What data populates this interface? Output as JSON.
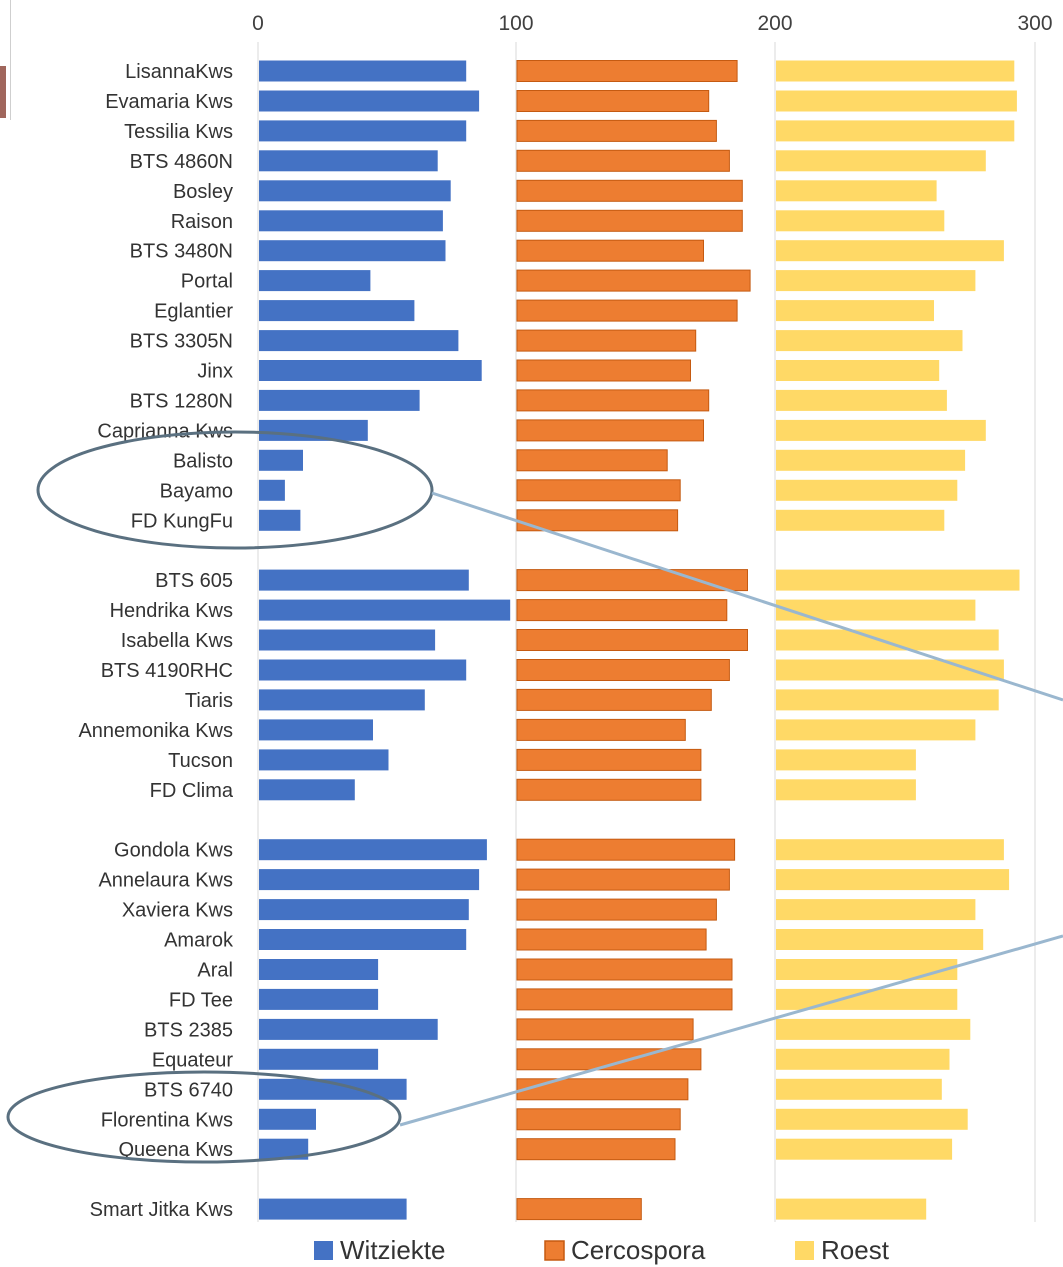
{
  "chart_data": {
    "type": "bar",
    "orientation": "horizontal",
    "layout": "stacked-panels",
    "x_ticks": [
      "0",
      "100",
      "200",
      "300"
    ],
    "xlim": [
      0,
      300
    ],
    "grid": true,
    "legend_position": "bottom",
    "categories": [
      "LisannaKws",
      "Evamaria Kws",
      "Tessilia Kws",
      "BTS 4860N",
      "Bosley",
      "Raison",
      "BTS 3480N",
      "Portal",
      "Eglantier",
      "BTS 3305N",
      "Jinx",
      "BTS 1280N",
      "Caprianna Kws",
      "Balisto",
      "Bayamo",
      "FD KungFu",
      "",
      "BTS 605",
      "Hendrika Kws",
      "Isabella Kws",
      "BTS 4190RHC",
      "Tiaris",
      "Annemonika Kws",
      "Tucson",
      "FD Clima",
      "",
      "Gondola Kws",
      "Annelaura Kws",
      "Xaviera Kws",
      "Amarok",
      "Aral",
      "FD Tee",
      "BTS 2385",
      "Equateur",
      "BTS  6740",
      "Florentina Kws",
      "Queena Kws",
      "",
      "Smart Jitka Kws"
    ],
    "series": [
      {
        "name": "Witziekte",
        "color": "#4472c4",
        "values": [
          80,
          85,
          80,
          69,
          74,
          71,
          72,
          43,
          60,
          77,
          86,
          62,
          42,
          17,
          10,
          16,
          null,
          81,
          97,
          68,
          80,
          64,
          44,
          50,
          37,
          null,
          88,
          85,
          81,
          80,
          46,
          46,
          69,
          46,
          57,
          22,
          19,
          null,
          57
        ]
      },
      {
        "name": "Cercospora",
        "color": "#ed7d31",
        "values": [
          85,
          74,
          77,
          82,
          87,
          87,
          72,
          90,
          85,
          69,
          67,
          74,
          72,
          58,
          63,
          62,
          null,
          89,
          81,
          89,
          82,
          75,
          65,
          71,
          71,
          null,
          84,
          82,
          77,
          73,
          83,
          83,
          68,
          71,
          66,
          63,
          61,
          null,
          48
        ]
      },
      {
        "name": "Roest",
        "color": "#ffd966",
        "values": [
          92,
          93,
          92,
          81,
          62,
          65,
          88,
          77,
          61,
          72,
          63,
          66,
          81,
          73,
          70,
          65,
          null,
          94,
          77,
          86,
          88,
          86,
          77,
          54,
          54,
          null,
          88,
          90,
          77,
          80,
          70,
          70,
          75,
          67,
          64,
          74,
          68,
          null,
          58
        ]
      }
    ]
  }
}
